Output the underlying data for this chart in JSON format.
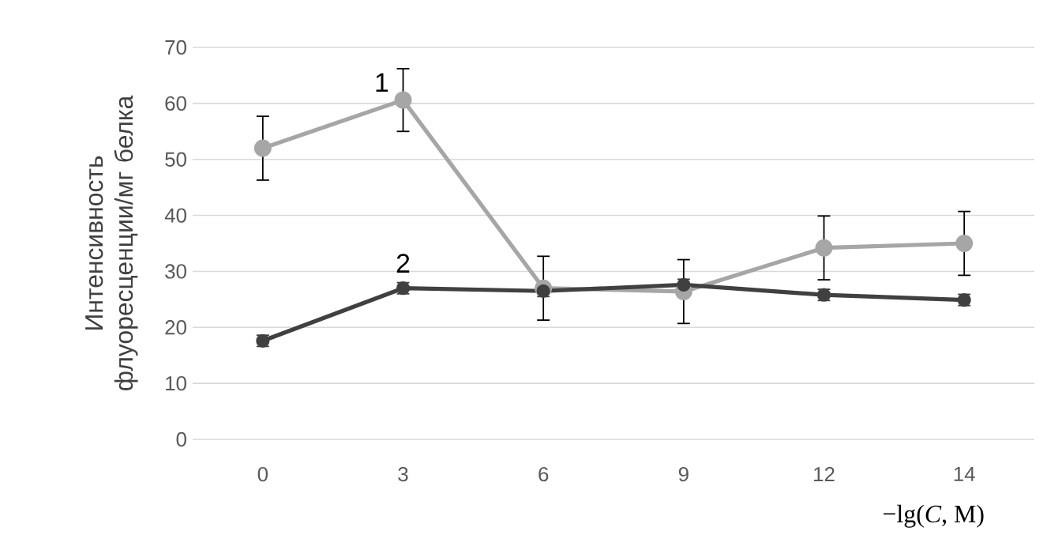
{
  "chart_data": {
    "type": "line",
    "xlabel": "−lg(*C*, M)",
    "ylabel": "Интенсивность флуоресценции/мг белка",
    "categories": [
      "0",
      "3",
      "6",
      "9",
      "12",
      "14"
    ],
    "series": [
      {
        "name": "1",
        "color": "#a6a6a6",
        "values": [
          52.0,
          60.6,
          27.0,
          26.4,
          34.2,
          35.0
        ],
        "errors": [
          5.7,
          5.6,
          5.7,
          5.7,
          5.7,
          5.7
        ]
      },
      {
        "name": "2",
        "color": "#404040",
        "values": [
          17.6,
          27.0,
          26.5,
          27.6,
          25.8,
          24.9
        ],
        "errors": [
          1.0,
          1.0,
          1.0,
          1.0,
          1.0,
          1.0
        ]
      }
    ],
    "ylim": [
      0,
      70
    ],
    "yticks": [
      0,
      10,
      20,
      30,
      40,
      50,
      60,
      70
    ],
    "grid": "y",
    "legend": false,
    "marker": "circle",
    "line_style": "solid"
  }
}
